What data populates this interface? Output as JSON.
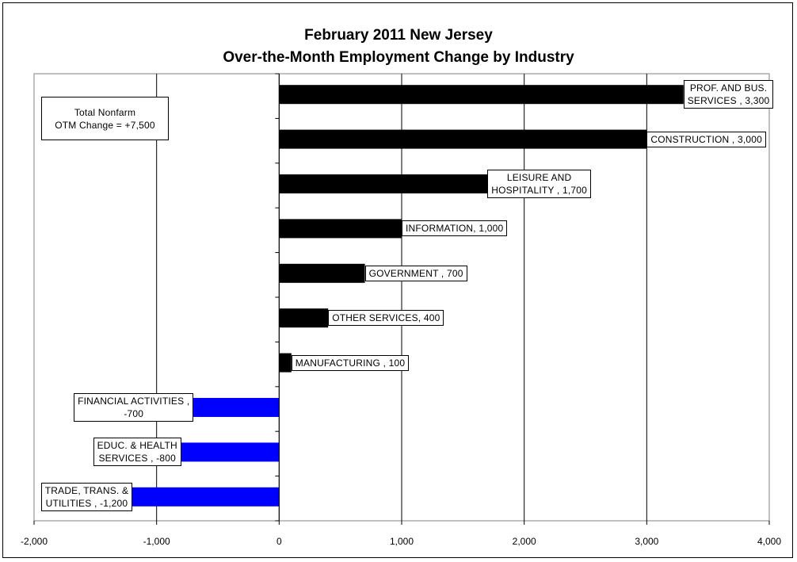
{
  "chart_data": {
    "type": "bar",
    "orientation": "horizontal",
    "title": "February 2011 New Jersey",
    "subtitle": "Over-the-Month Employment Change by Industry",
    "xlim": [
      -2000,
      4000
    ],
    "xticks": [
      -2000,
      -1000,
      0,
      1000,
      2000,
      3000,
      4000
    ],
    "xtick_labels": [
      "-2,000",
      "-1,000",
      "0",
      "1,000",
      "2,000",
      "3,000",
      "4,000"
    ],
    "grid": true,
    "categories": [
      "PROF. AND BUS. SERVICES",
      "CONSTRUCTION",
      "LEISURE AND HOSPITALITY",
      "INFORMATION",
      "GOVERNMENT",
      "OTHER SERVICES",
      "MANUFACTURING",
      "FINANCIAL ACTIVITIES",
      "EDUC. & HEALTH SERVICES",
      "TRADE, TRANS. & UTILITIES"
    ],
    "values": [
      3300,
      3000,
      1700,
      1000,
      700,
      400,
      100,
      -700,
      -800,
      -1200
    ],
    "data_labels": [
      [
        "PROF. AND BUS.",
        "SERVICES , 3,300"
      ],
      [
        "CONSTRUCTION , 3,000"
      ],
      [
        "LEISURE AND",
        "HOSPITALITY  , 1,700"
      ],
      [
        "INFORMATION, 1,000"
      ],
      [
        "GOVERNMENT , 700"
      ],
      [
        "OTHER SERVICES, 400"
      ],
      [
        "MANUFACTURING , 100"
      ],
      [
        "FINANCIAL ACTIVITIES ,",
        "-700"
      ],
      [
        "EDUC. & HEALTH",
        "SERVICES , -800"
      ],
      [
        "TRADE, TRANS. &",
        "UTILITIES , -1,200"
      ]
    ],
    "colors": {
      "positive": "#000000",
      "negative": "#0000ff"
    },
    "annotation": [
      "Total Nonfarm",
      "OTM Change = +7,500"
    ]
  }
}
